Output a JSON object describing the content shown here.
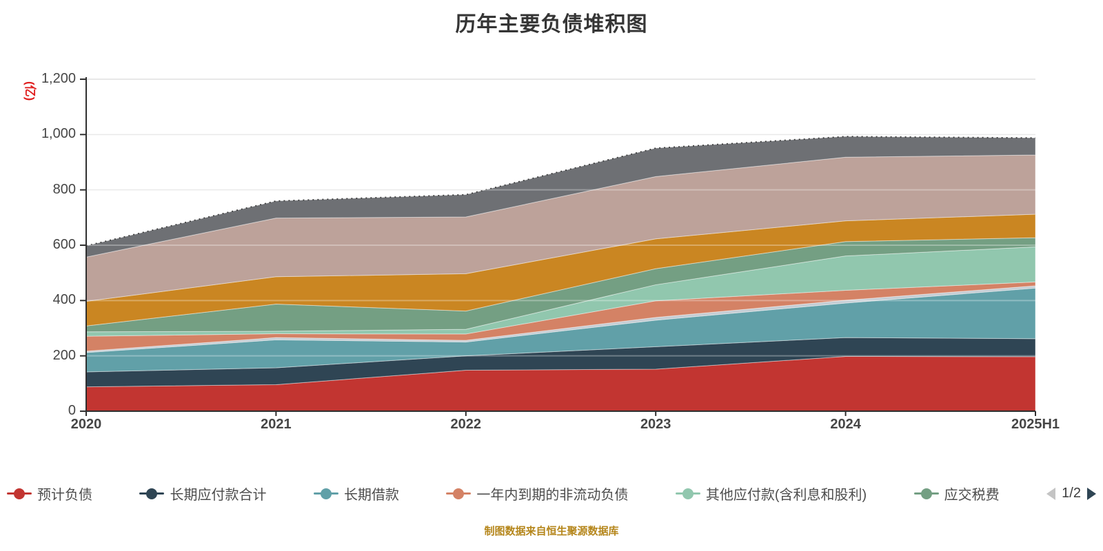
{
  "title": "历年主要负债堆积图",
  "source_note": "制图数据来自恒生聚源数据库",
  "y_axis": {
    "unit_label": "(亿)",
    "min": 0,
    "max": 1200,
    "tick_step": 200,
    "tick_labels": [
      "0",
      "200",
      "400",
      "600",
      "800",
      "1,000",
      "1,200"
    ]
  },
  "x_axis": {
    "labels": [
      "2020",
      "2021",
      "2022",
      "2023",
      "2024",
      "2025H1"
    ]
  },
  "legend": {
    "page_indicator": "1/2",
    "items": [
      {
        "label": "预计负债",
        "color": "#c23531"
      },
      {
        "label": "长期应付款合计",
        "color": "#2f4554"
      },
      {
        "label": "长期借款",
        "color": "#61a0a8"
      },
      {
        "label": "一年内到期的非流动负债",
        "color": "#d48265"
      },
      {
        "label": "其他应付款(含利息和股利)",
        "color": "#91c7ae"
      },
      {
        "label": "应交税费",
        "color": "#749f83"
      }
    ]
  },
  "chart_data": {
    "type": "area",
    "stacked": true,
    "title": "历年主要负债堆积图",
    "xlabel": "",
    "ylabel": "(亿)",
    "ylim": [
      0,
      1200
    ],
    "grid": true,
    "legend_position": "bottom",
    "x": [
      "2020",
      "2021",
      "2022",
      "2023",
      "2024",
      "2025H1"
    ],
    "series": [
      {
        "name": "预计负债",
        "color": "#c23531",
        "legend_visible": true,
        "values": [
          88,
          96,
          148,
          152,
          198,
          197
        ]
      },
      {
        "name": "长期应付款合计",
        "color": "#2f4554",
        "legend_visible": true,
        "values": [
          54,
          61,
          52,
          81,
          68,
          65
        ]
      },
      {
        "name": "长期借款",
        "color": "#61a0a8",
        "legend_visible": true,
        "values": [
          70,
          101,
          50,
          96,
          125,
          183
        ]
      },
      {
        "name": "",
        "color": "#c4ccd3",
        "legend_visible": false,
        "values": [
          5,
          8,
          6,
          10,
          10,
          8
        ]
      },
      {
        "name": "一年内到期的非流动负债",
        "color": "#d48265",
        "legend_visible": true,
        "values": [
          54,
          14,
          23,
          60,
          36,
          14
        ]
      },
      {
        "name": "其他应付款(含利息和股利)",
        "color": "#91c7ae",
        "legend_visible": true,
        "values": [
          16,
          9,
          17,
          58,
          124,
          127
        ]
      },
      {
        "name": "应交税费",
        "color": "#749f83",
        "legend_visible": true,
        "values": [
          21,
          98,
          66,
          58,
          52,
          33
        ]
      },
      {
        "name": "",
        "color": "#ca8622",
        "legend_visible": false,
        "values": [
          89,
          99,
          135,
          108,
          75,
          85
        ]
      },
      {
        "name": "",
        "color": "#bda29a",
        "legend_visible": false,
        "values": [
          160,
          212,
          205,
          225,
          230,
          214
        ]
      },
      {
        "name": "",
        "color": "#6e7074",
        "legend_visible": false,
        "values": [
          41,
          62,
          81,
          103,
          75,
          62
        ]
      }
    ],
    "totals": [
      598,
      760,
      783,
      951,
      993,
      988
    ]
  }
}
